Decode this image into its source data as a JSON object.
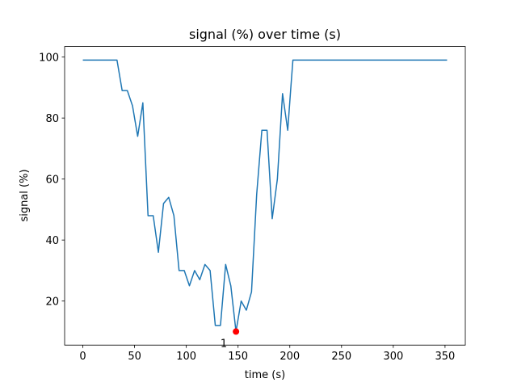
{
  "chart_data": {
    "type": "line",
    "title": "signal (%) over time (s)",
    "xlabel": "time (s)",
    "ylabel": "signal (%)",
    "x": [
      0,
      33,
      38,
      43,
      48,
      53,
      58,
      63,
      68,
      73,
      78,
      83,
      88,
      93,
      98,
      103,
      108,
      113,
      118,
      123,
      128,
      133,
      138,
      143,
      148,
      153,
      158,
      163,
      168,
      173,
      178,
      183,
      188,
      193,
      198,
      201,
      203,
      352
    ],
    "series": [
      {
        "name": "signal",
        "color": "#1f77b4",
        "values": [
          99,
          99,
          89,
          89,
          84,
          74,
          85,
          48,
          48,
          36,
          52,
          54,
          48,
          30,
          30,
          25,
          30,
          27,
          32,
          30,
          12,
          12,
          32,
          25,
          10,
          20,
          17,
          23,
          55,
          76,
          76,
          47,
          60,
          88,
          76,
          90,
          99,
          99
        ]
      }
    ],
    "highlight": {
      "x": 148,
      "y": 10,
      "label": "1",
      "color": "#ff0000"
    },
    "xlim": [
      -17.6,
      369.6
    ],
    "ylim": [
      5.55,
      103.45
    ],
    "xticks": [
      0,
      50,
      100,
      150,
      200,
      250,
      300,
      350
    ],
    "yticks": [
      20,
      40,
      60,
      80,
      100
    ]
  }
}
